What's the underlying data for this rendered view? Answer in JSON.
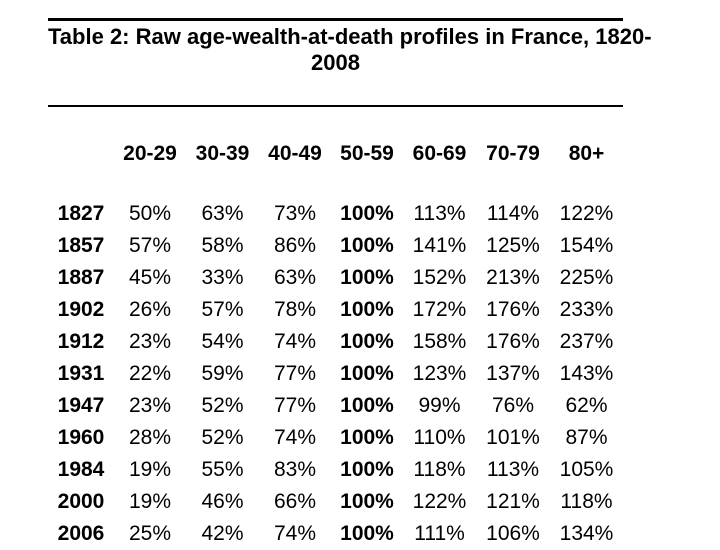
{
  "page": {
    "background_color": "#ffffff",
    "text_color": "#000000"
  },
  "title": {
    "line1": "Table 2: Raw age-wealth-at-death profiles in France, 1820-",
    "line2": "2008"
  },
  "table": {
    "corner_label": "",
    "age_group_headers": [
      "20-29",
      "30-39",
      "40-49",
      "50-59",
      "60-69",
      "70-79",
      "80+"
    ],
    "rows": [
      {
        "year": "1827",
        "values": [
          "50%",
          "63%",
          "73%",
          "100%",
          "113%",
          "114%",
          "122%"
        ]
      },
      {
        "year": "1857",
        "values": [
          "57%",
          "58%",
          "86%",
          "100%",
          "141%",
          "125%",
          "154%"
        ]
      },
      {
        "year": "1887",
        "values": [
          "45%",
          "33%",
          "63%",
          "100%",
          "152%",
          "213%",
          "225%"
        ]
      },
      {
        "year": "1902",
        "values": [
          "26%",
          "57%",
          "78%",
          "100%",
          "172%",
          "176%",
          "233%"
        ]
      },
      {
        "year": "1912",
        "values": [
          "23%",
          "54%",
          "74%",
          "100%",
          "158%",
          "176%",
          "237%"
        ]
      },
      {
        "year": "1931",
        "values": [
          "22%",
          "59%",
          "77%",
          "100%",
          "123%",
          "137%",
          "143%"
        ]
      },
      {
        "year": "1947",
        "values": [
          "23%",
          "52%",
          "77%",
          "100%",
          "99%",
          "76%",
          "62%"
        ]
      },
      {
        "year": "1960",
        "values": [
          "28%",
          "52%",
          "74%",
          "100%",
          "110%",
          "101%",
          "87%"
        ]
      },
      {
        "year": "1984",
        "values": [
          "19%",
          "55%",
          "83%",
          "100%",
          "118%",
          "113%",
          "105%"
        ]
      },
      {
        "year": "2000",
        "values": [
          "19%",
          "46%",
          "66%",
          "100%",
          "122%",
          "121%",
          "118%"
        ]
      },
      {
        "year": "2006",
        "values": [
          "25%",
          "42%",
          "74%",
          "100%",
          "111%",
          "106%",
          "134%"
        ]
      }
    ]
  }
}
